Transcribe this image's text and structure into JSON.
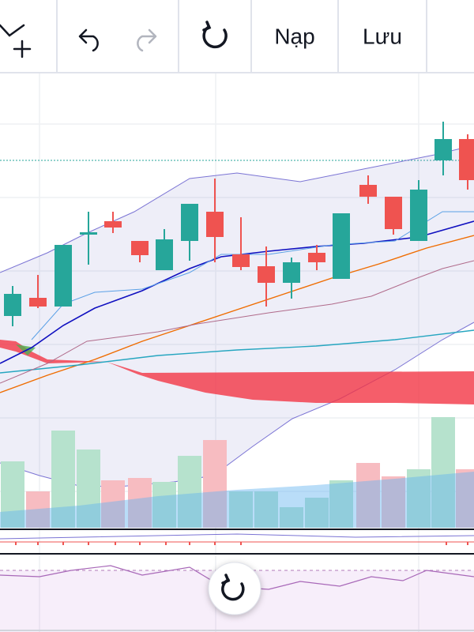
{
  "toolbar": {
    "buttons": [
      "Nạp",
      "Lưu"
    ]
  }
}
